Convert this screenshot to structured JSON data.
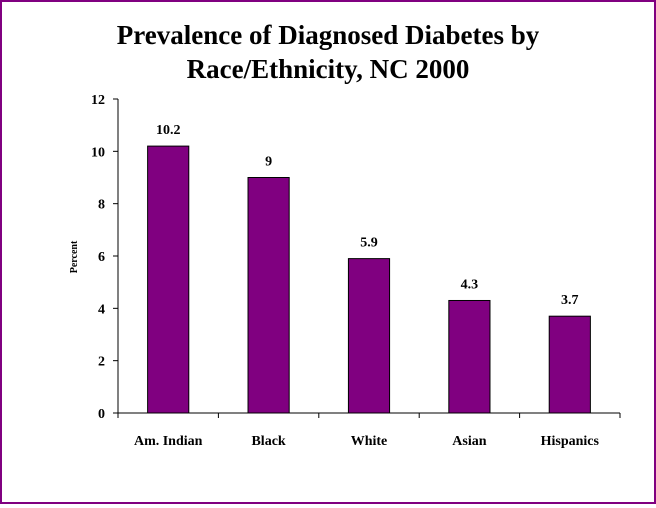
{
  "chart_data": {
    "type": "bar",
    "title_line1": "Prevalence of Diagnosed Diabetes by",
    "title_line2": "Race/Ethnicity, NC 2000",
    "ylabel": "Percent",
    "xlabel": "",
    "categories": [
      "Am. Indian",
      "Black",
      "White",
      "Asian",
      "Hispanics"
    ],
    "values": [
      10.2,
      9,
      5.9,
      4.3,
      3.7
    ],
    "data_labels": [
      "10.2",
      "9",
      "5.9",
      "4.3",
      "3.7"
    ],
    "ylim": [
      0,
      12
    ],
    "yticks": [
      "0",
      "2",
      "4",
      "6",
      "8",
      "10",
      "12"
    ],
    "grid": false,
    "legend": "none",
    "bar_color": "#800080",
    "frame_color": "#800080"
  }
}
